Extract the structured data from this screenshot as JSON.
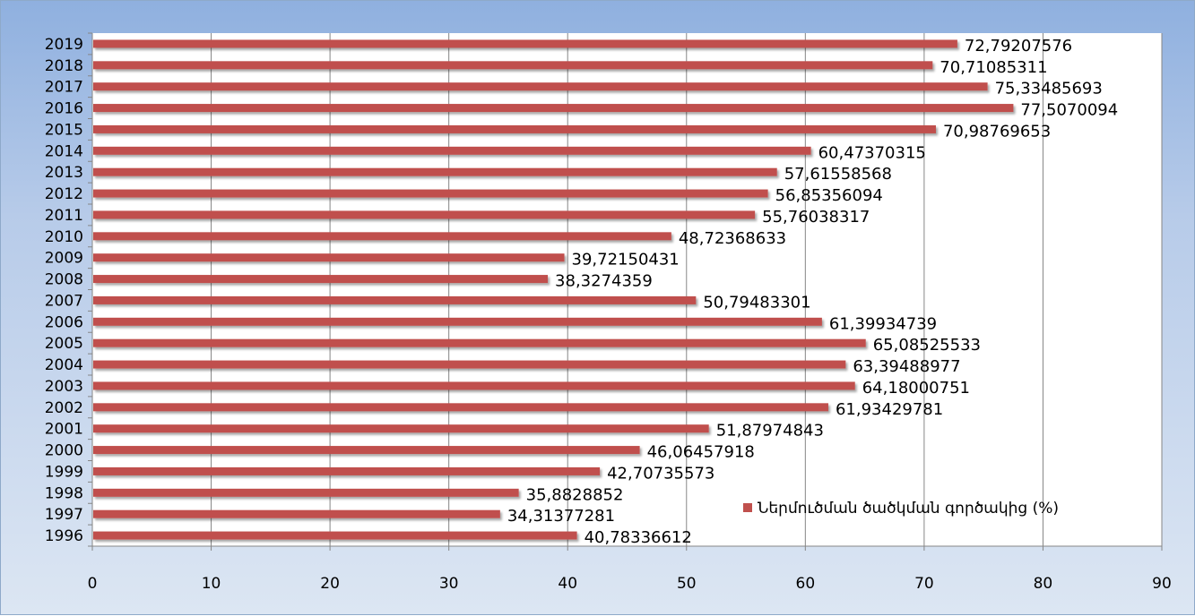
{
  "chart_data": {
    "type": "bar",
    "orientation": "horizontal",
    "categories": [
      "2019",
      "2018",
      "2017",
      "2016",
      "2015",
      "2014",
      "2013",
      "2012",
      "2011",
      "2010",
      "2009",
      "2008",
      "2007",
      "2006",
      "2005",
      "2004",
      "2003",
      "2002",
      "2001",
      "2000",
      "1999",
      "1998",
      "1997",
      "1996"
    ],
    "series": [
      {
        "name": "Ներմուծման ծածկման գործակից (%)",
        "color": "#c0504d",
        "values": [
          72.79207576,
          70.71085311,
          75.33485693,
          77.5070094,
          70.98769653,
          60.47370315,
          57.61558568,
          56.85356094,
          55.76038317,
          48.72368633,
          39.72150431,
          38.3274359,
          50.79483301,
          61.39934739,
          65.08525533,
          63.39488977,
          64.18000751,
          61.93429781,
          51.87974843,
          46.06457918,
          42.70735573,
          35.8828852,
          34.31377281,
          40.78336612
        ],
        "labels": [
          "72,79207576",
          "70,71085311",
          "75,33485693",
          "77,5070094",
          "70,98769653",
          "60,47370315",
          "57,61558568",
          "56,85356094",
          "55,76038317",
          "48,72368633",
          "39,72150431",
          "38,3274359",
          "50,79483301",
          "61,39934739",
          "65,08525533",
          "63,39488977",
          "64,18000751",
          "61,93429781",
          "51,87974843",
          "46,06457918",
          "42,70735573",
          "35,8828852",
          "34,31377281",
          "40,78336612"
        ]
      }
    ],
    "xlim": [
      0,
      90
    ],
    "xticks": [
      0,
      10,
      20,
      30,
      40,
      50,
      60,
      70,
      80,
      90
    ],
    "xtick_labels": [
      "0",
      "10",
      "20",
      "30",
      "40",
      "50",
      "60",
      "70",
      "80",
      "90"
    ],
    "grid": true,
    "legend_position": "lower-right inside plot",
    "title": "",
    "xlabel": "",
    "ylabel": ""
  }
}
